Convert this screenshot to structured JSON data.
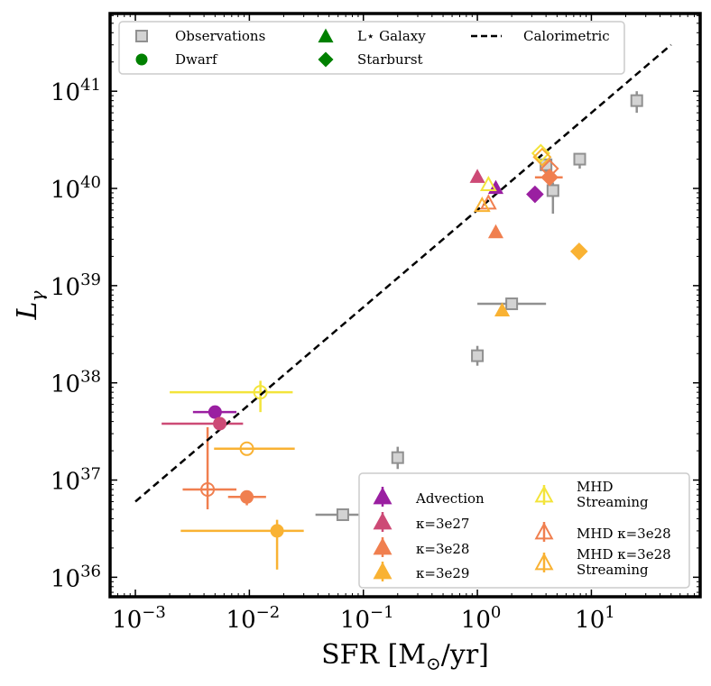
{
  "chart_data": {
    "type": "scatter",
    "xscale": "log",
    "yscale": "log",
    "xlim": [
      0.0006,
      90
    ],
    "ylim": [
      6.3e+35,
      6.3e+41
    ],
    "xlabel": {
      "base": "SFR [M",
      "sub": "⊙",
      "tail": "/yr]"
    },
    "ylabel": {
      "base": "L",
      "sub": "γ"
    },
    "xticks": [
      {
        "value": 0.001,
        "base": "10",
        "exp": "−3"
      },
      {
        "value": 0.01,
        "base": "10",
        "exp": "−2"
      },
      {
        "value": 0.1,
        "base": "10",
        "exp": "−1"
      },
      {
        "value": 1,
        "base": "10",
        "exp": "0"
      },
      {
        "value": 10,
        "base": "10",
        "exp": "1"
      }
    ],
    "yticks": [
      {
        "value": 1e+36,
        "base": "10",
        "exp": "36"
      },
      {
        "value": 1e+37,
        "base": "10",
        "exp": "37"
      },
      {
        "value": 1e+38,
        "base": "10",
        "exp": "38"
      },
      {
        "value": 1e+39,
        "base": "10",
        "exp": "39"
      },
      {
        "value": 1e+40,
        "base": "10",
        "exp": "40"
      },
      {
        "value": 1e+41,
        "base": "10",
        "exp": "41"
      }
    ],
    "calorimetric_line": {
      "x": [
        0.001,
        50
      ],
      "y": [
        6e+36,
        3e+41
      ]
    },
    "colors": {
      "observations": "#909090",
      "observations_fill": "#d3d3d3",
      "advection": "#9a1fa1",
      "k3e27": "#cd4a76",
      "k3e28": "#f07f4f",
      "k3e29": "#f9b233",
      "mhd_streaming": "#f3e43b",
      "mhd_k3e28": "#f07f4f",
      "mhd_k3e28_streaming": "#f9b233",
      "legend_green": "#008000"
    },
    "series": [
      {
        "name": "Observations",
        "key": "observations",
        "marker": "square",
        "fill": "open_grey",
        "points": [
          {
            "x": 25,
            "y": 8e+40,
            "ylo": 6e+40,
            "yhi": 1e+41
          },
          {
            "x": 7.9,
            "y": 2e+40,
            "ylo": 1.6e+40,
            "yhi": 2.3e+40
          },
          {
            "x": 4.0,
            "y": 1.75e+40,
            "ylo": 1.4e+40,
            "yhi": 2e+40
          },
          {
            "x": 4.6,
            "y": 9.5e+39,
            "ylo": 5.5e+39,
            "yhi": 1.15e+40
          },
          {
            "x": 2.0,
            "y": 6.5e+38,
            "xlo": 1.0,
            "xhi": 4.0
          },
          {
            "x": 1.0,
            "y": 1.9e+38,
            "ylo": 1.5e+38,
            "yhi": 2.4e+38
          },
          {
            "x": 0.2,
            "y": 1.7e+37,
            "ylo": 1.3e+37,
            "yhi": 2.2e+37
          },
          {
            "x": 0.066,
            "y": 4.4e+36,
            "xlo": 0.038,
            "xhi": 0.12
          }
        ]
      },
      {
        "name": "Advection",
        "key": "advection",
        "points": [
          {
            "x": 0.005,
            "y": 5e+37,
            "marker": "circle",
            "fill": "solid",
            "xlo": 0.0032,
            "xhi": 0.0077
          },
          {
            "x": 1.45,
            "y": 1e+40,
            "marker": "triangle",
            "fill": "solid"
          },
          {
            "x": 3.2,
            "y": 8.7e+39,
            "marker": "diamond",
            "fill": "solid"
          }
        ]
      },
      {
        "name": "κ=3e27",
        "key": "k3e27",
        "points": [
          {
            "x": 0.0055,
            "y": 3.8e+37,
            "marker": "circle",
            "fill": "solid",
            "xlo": 0.0017,
            "xhi": 0.0088
          },
          {
            "x": 1.0,
            "y": 1.3e+40,
            "marker": "triangle",
            "fill": "solid"
          }
        ]
      },
      {
        "name": "κ=3e28",
        "key": "k3e28",
        "points": [
          {
            "x": 0.0095,
            "y": 6.7e+36,
            "marker": "circle",
            "fill": "solid",
            "xlo": 0.0065,
            "xhi": 0.014,
            "ylo": 5.5e+36,
            "yhi": 7.5e+36
          },
          {
            "x": 1.45,
            "y": 3.5e+39,
            "marker": "triangle",
            "fill": "solid"
          },
          {
            "x": 4.3,
            "y": 1.3e+40,
            "marker": "diamond",
            "fill": "solid",
            "xlo": 3.2,
            "xhi": 5.6
          }
        ]
      },
      {
        "name": "κ=3e29",
        "key": "k3e29",
        "points": [
          {
            "x": 0.0175,
            "y": 3e+36,
            "marker": "circle",
            "fill": "solid",
            "xlo": 0.0025,
            "xhi": 0.03,
            "ylo": 1.2e+36,
            "yhi": 3.9e+36
          },
          {
            "x": 1.65,
            "y": 5.5e+38,
            "marker": "triangle",
            "fill": "solid"
          },
          {
            "x": 7.8,
            "y": 2.25e+39,
            "marker": "diamond",
            "fill": "solid"
          }
        ]
      },
      {
        "name": "MHD Streaming",
        "key": "mhd_streaming",
        "points": [
          {
            "x": 0.0125,
            "y": 8e+37,
            "marker": "circle",
            "fill": "open",
            "xlo": 0.002,
            "xhi": 0.024,
            "ylo": 5e+37,
            "yhi": 1.05e+38
          },
          {
            "x": 1.25,
            "y": 1.08e+40,
            "marker": "triangle",
            "fill": "open"
          },
          {
            "x": 3.6,
            "y": 2.3e+40,
            "marker": "diamond",
            "fill": "open"
          }
        ]
      },
      {
        "name": "MHD κ=3e28",
        "key": "mhd_k3e28",
        "points": [
          {
            "x": 0.0043,
            "y": 8e+36,
            "marker": "circle",
            "fill": "open",
            "xlo": 0.0026,
            "xhi": 0.0077,
            "ylo": 5e+36,
            "yhi": 3.5e+37
          },
          {
            "x": 1.25,
            "y": 7e+39,
            "marker": "triangle",
            "fill": "open"
          },
          {
            "x": 4.3,
            "y": 1.6e+40,
            "marker": "diamond",
            "fill": "open"
          }
        ]
      },
      {
        "name": "MHD κ=3e28 Streaming",
        "key": "mhd_k3e28_streaming",
        "points": [
          {
            "x": 0.0095,
            "y": 2.1e+37,
            "marker": "circle",
            "fill": "open",
            "xlo": 0.0049,
            "xhi": 0.025
          },
          {
            "x": 1.1,
            "y": 6.6e+39,
            "marker": "triangle",
            "fill": "open"
          },
          {
            "x": 3.7,
            "y": 2.1e+40,
            "marker": "diamond",
            "fill": "open"
          }
        ]
      }
    ],
    "legend_top": [
      {
        "label": "Observations",
        "icon": "square-grey"
      },
      {
        "label": "Dwarf",
        "icon": "circle-green"
      },
      {
        "label": "L⋆ Galaxy",
        "icon": "triangle-green"
      },
      {
        "label": "Starburst",
        "icon": "diamond-green"
      },
      {
        "label": "Calorimetric",
        "icon": "dashed-line"
      }
    ],
    "legend_bottom": [
      {
        "lines": [
          "Advection"
        ],
        "key": "advection",
        "fill": "solid"
      },
      {
        "lines": [
          "κ=3e27"
        ],
        "key": "k3e27",
        "fill": "solid"
      },
      {
        "lines": [
          "κ=3e28"
        ],
        "key": "k3e28",
        "fill": "solid"
      },
      {
        "lines": [
          "κ=3e29"
        ],
        "key": "k3e29",
        "fill": "solid"
      },
      {
        "lines": [
          "MHD",
          "Streaming"
        ],
        "key": "mhd_streaming",
        "fill": "open"
      },
      {
        "lines": [
          "MHD κ=3e28"
        ],
        "key": "mhd_k3e28",
        "fill": "open"
      },
      {
        "lines": [
          "MHD κ=3e28",
          "Streaming"
        ],
        "key": "mhd_k3e28_streaming",
        "fill": "open"
      }
    ]
  }
}
